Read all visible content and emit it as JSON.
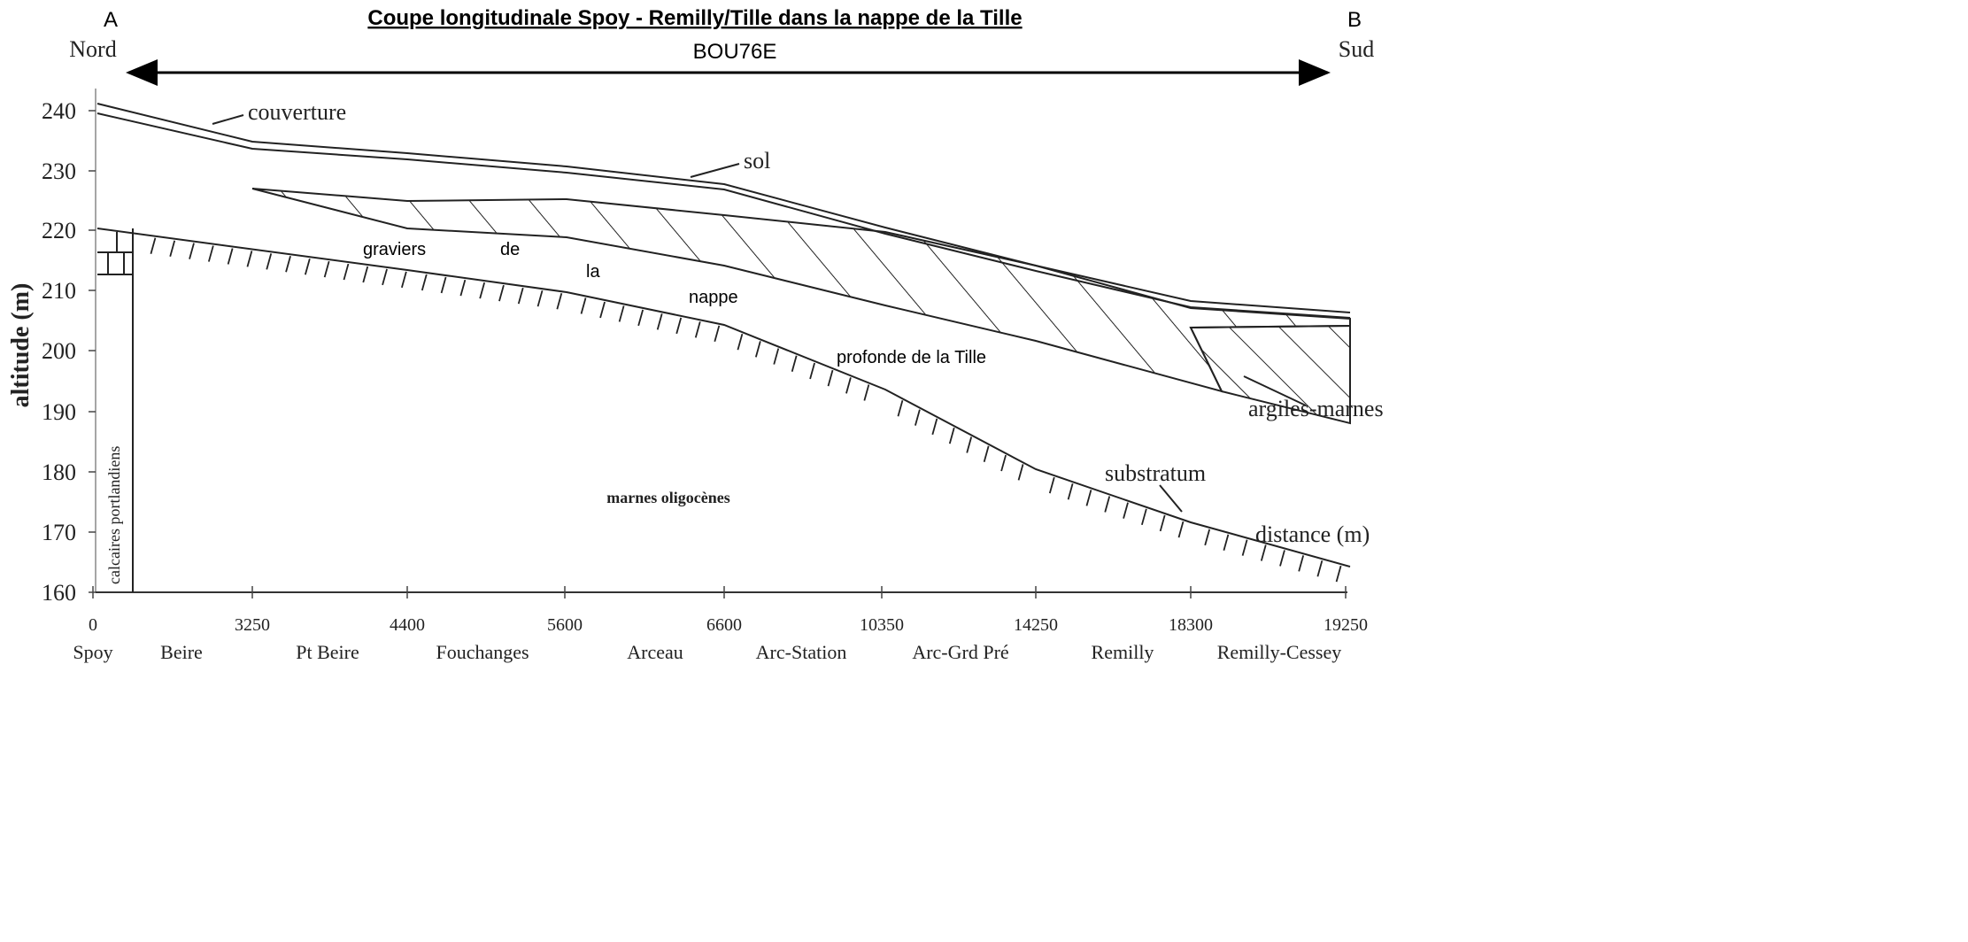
{
  "header": {
    "left": "A",
    "right": "B",
    "title": "Coupe longitudinale Spoy - Remilly/Tille dans la nappe de la Tille"
  },
  "direction": {
    "start": "Nord",
    "end": "Sud",
    "label": "BOU76E"
  },
  "y_axis": {
    "label": "altitude (m)",
    "ticks": [
      240,
      230,
      220,
      210,
      200,
      190,
      180,
      170,
      160
    ]
  },
  "x_axis": {
    "label": "distance (m)",
    "ticks": [
      0,
      3250,
      4400,
      5600,
      6600,
      10350,
      14250,
      18300,
      19250
    ],
    "places": [
      "Spoy",
      "Beire",
      "Pt Beire",
      "Fouchanges",
      "Arceau",
      "Arc-Station",
      "Arc-Grd Pré",
      "Remilly",
      "Remilly-Cessey"
    ]
  },
  "layers": {
    "couverture": "couverture",
    "sol": "sol",
    "gravel_words": [
      "graviers",
      "de",
      "la",
      "nappe",
      "profonde de la Tille"
    ],
    "clay": "argiles-marnes",
    "substratum": "substratum",
    "marl": "marnes oligocènes",
    "limestone": "calcaires portlandiens"
  }
}
